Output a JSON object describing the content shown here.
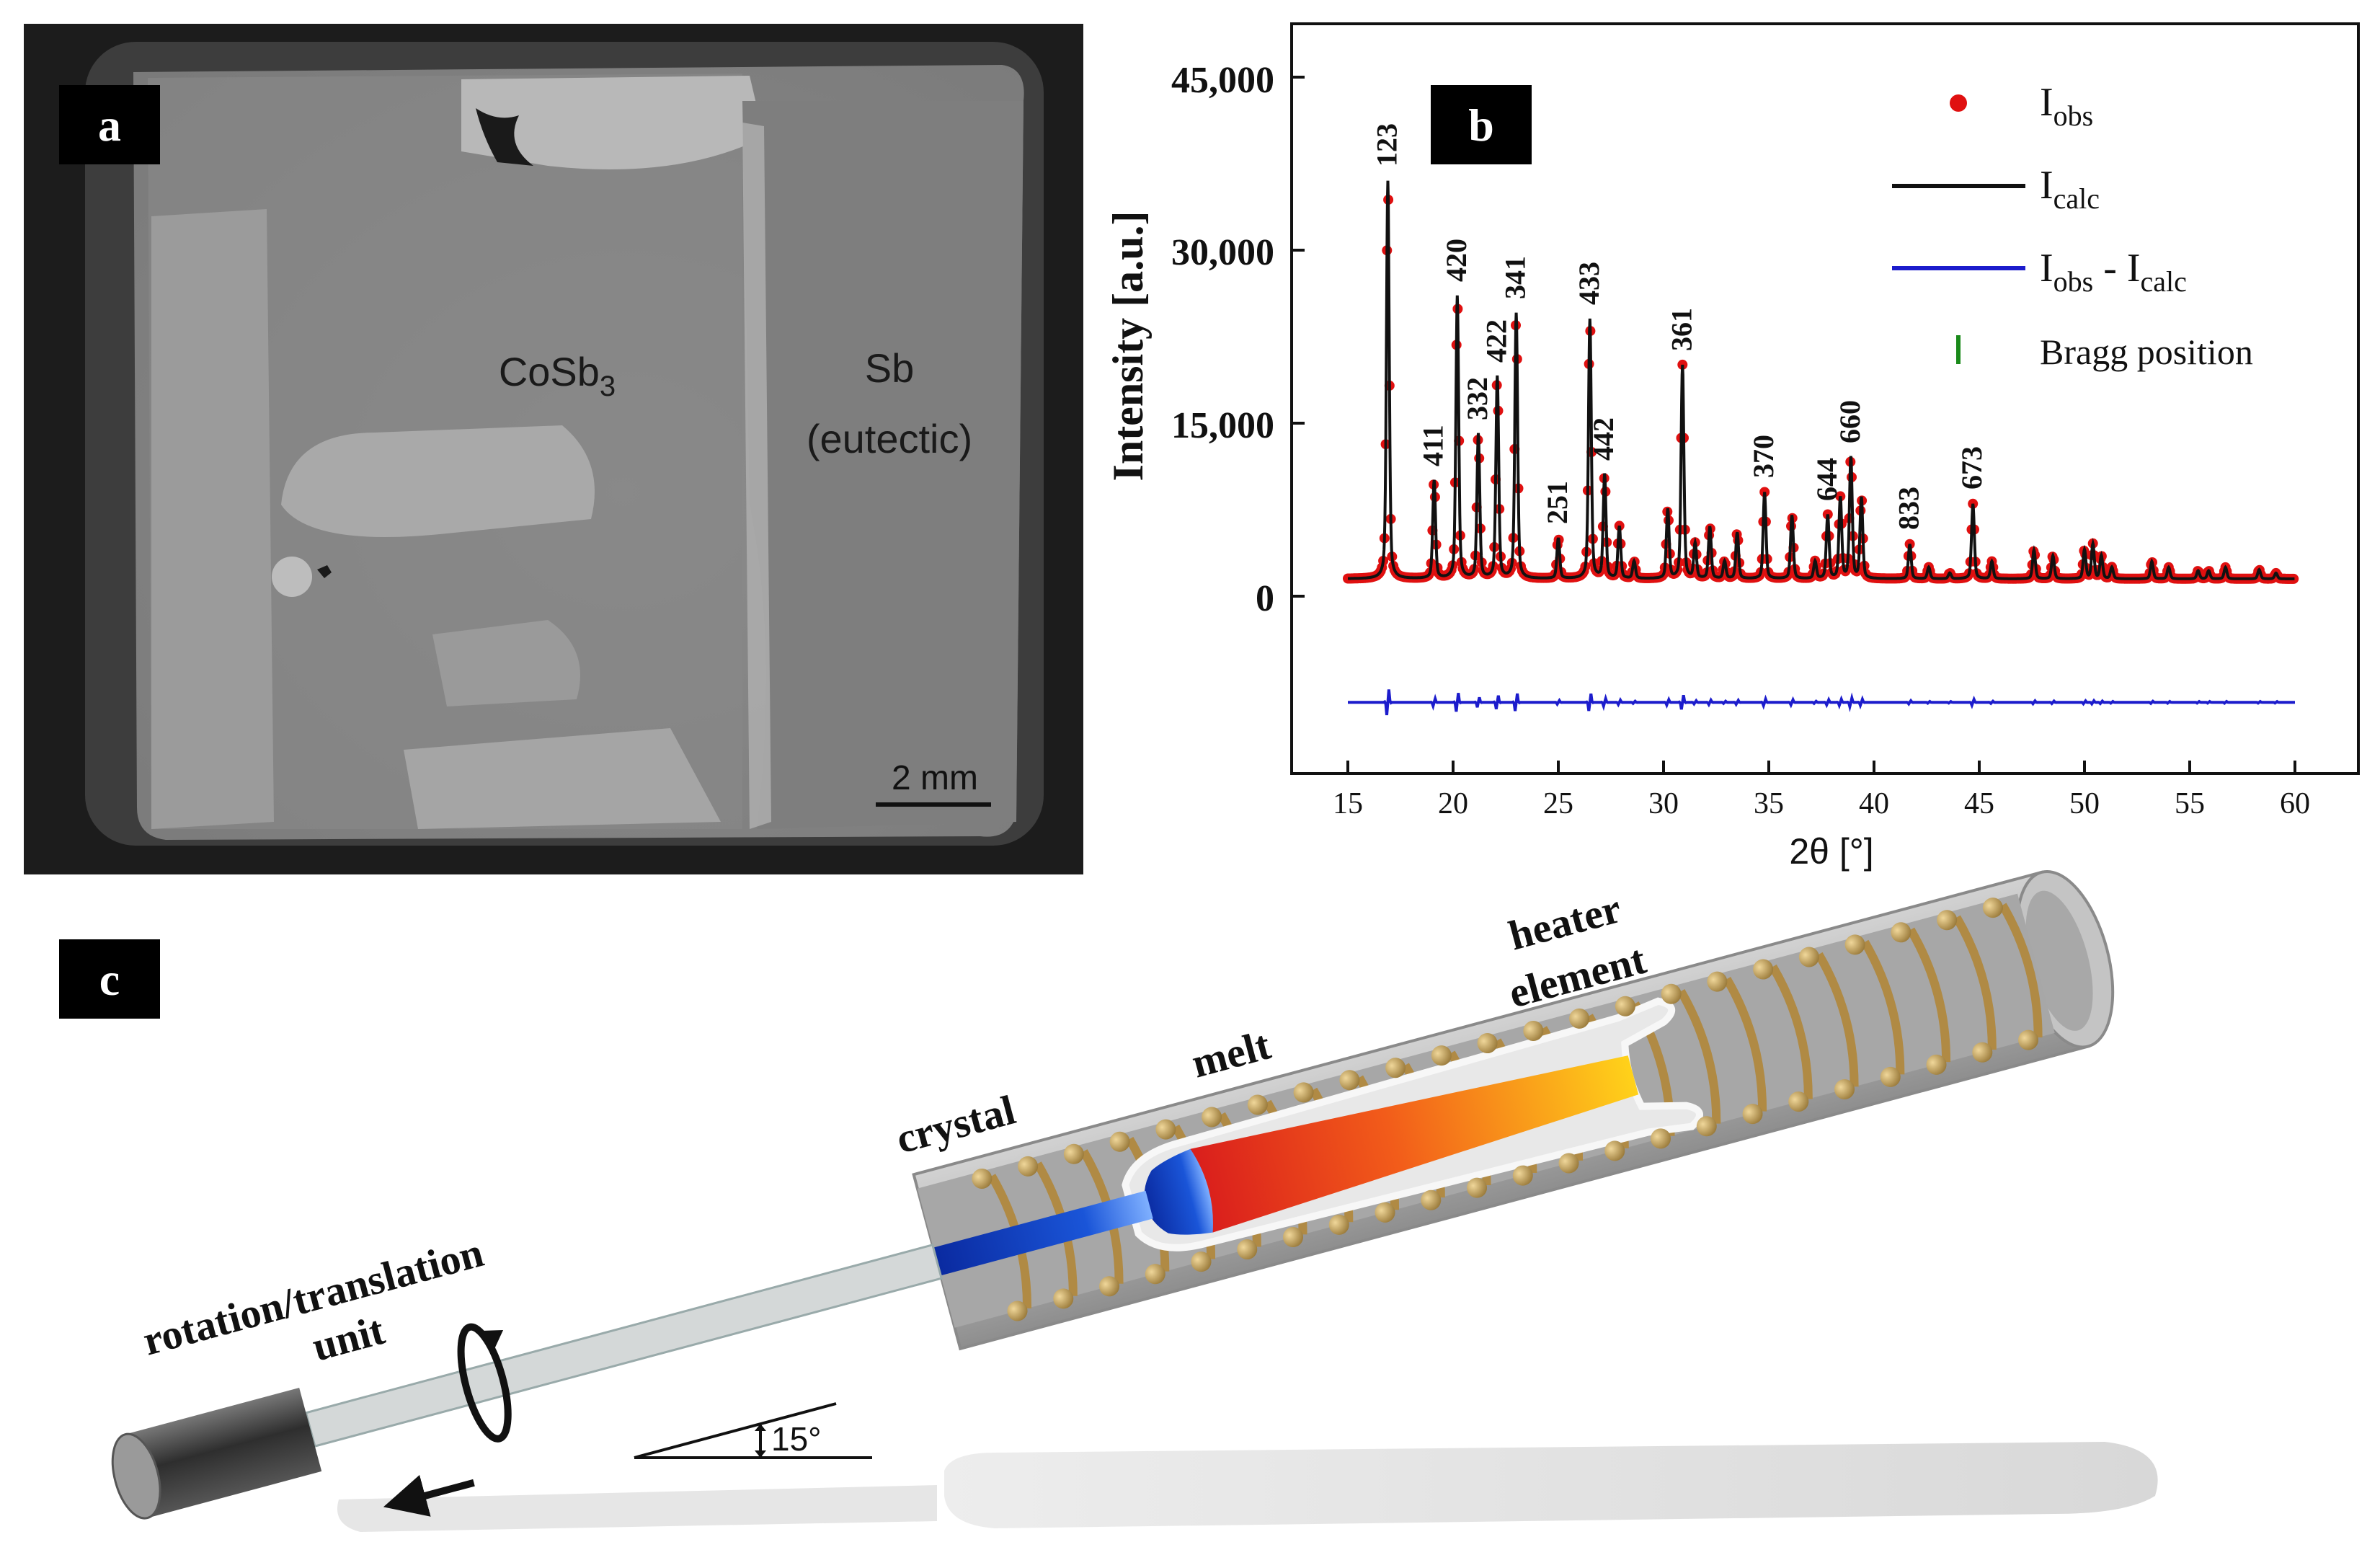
{
  "panel_a": {
    "label": "a",
    "phase_left": {
      "base": "CoSb",
      "sub": "3"
    },
    "phase_right_line1": "Sb",
    "phase_right_line2": "(eutectic)",
    "scale_bar": "2 mm"
  },
  "panel_b": {
    "label": "b",
    "y_axis_label": "Intensity [a.u.]",
    "x_axis_label": "2θ [°]",
    "y_ticks": [
      "45,000",
      "30,000",
      "15,000",
      "0"
    ],
    "x_ticks": [
      "15",
      "20",
      "25",
      "30",
      "35",
      "40",
      "45",
      "50",
      "55",
      "60"
    ],
    "legend": {
      "obs": {
        "base": "I",
        "sub": "obs"
      },
      "calc": {
        "base": "I",
        "sub": "calc"
      },
      "diff": {
        "base1": "I",
        "sub1": "obs",
        "mid": " - ",
        "base2": "I",
        "sub2": "calc"
      },
      "bragg": "Bragg position"
    }
  },
  "panel_c": {
    "label": "c",
    "heater_line1": "heater",
    "heater_line2": "element",
    "melt": "melt",
    "crystal": "crystal",
    "unit_line1": "rotation/translation",
    "unit_line2": "unit",
    "angle": "15°"
  },
  "chart_data": {
    "type": "line",
    "title": "",
    "xlabel": "2θ [°]",
    "ylabel": "Intensity [a.u.]",
    "xlim": [
      13.5,
      61.5
    ],
    "ylim": [
      -14000,
      50500
    ],
    "baseline": 1500,
    "diff_offset": -9200,
    "series": [
      {
        "name": "I_obs",
        "style": "red-dots"
      },
      {
        "name": "I_calc",
        "style": "black-line"
      },
      {
        "name": "I_obs - I_calc",
        "style": "blue-line"
      },
      {
        "name": "Bragg position",
        "style": "green-ticks"
      }
    ],
    "peaks": [
      {
        "x": 16.9,
        "y": 36000,
        "hkl": "123"
      },
      {
        "x": 19.1,
        "y": 10000,
        "hkl": "411"
      },
      {
        "x": 20.2,
        "y": 26000,
        "hkl": "420"
      },
      {
        "x": 21.2,
        "y": 14000,
        "hkl": "332"
      },
      {
        "x": 22.1,
        "y": 19000,
        "hkl": "422"
      },
      {
        "x": 23.0,
        "y": 24500,
        "hkl": "341"
      },
      {
        "x": 25.0,
        "y": 5000,
        "hkl": "251"
      },
      {
        "x": 26.5,
        "y": 24000,
        "hkl": "433"
      },
      {
        "x": 27.2,
        "y": 10500,
        "hkl": "442"
      },
      {
        "x": 27.9,
        "y": 6000,
        "hkl": ""
      },
      {
        "x": 28.6,
        "y": 3000,
        "hkl": ""
      },
      {
        "x": 30.2,
        "y": 7500,
        "hkl": ""
      },
      {
        "x": 30.9,
        "y": 20000,
        "hkl": "361"
      },
      {
        "x": 31.5,
        "y": 4500,
        "hkl": ""
      },
      {
        "x": 32.2,
        "y": 6000,
        "hkl": ""
      },
      {
        "x": 32.9,
        "y": 3000,
        "hkl": ""
      },
      {
        "x": 33.5,
        "y": 5500,
        "hkl": ""
      },
      {
        "x": 34.8,
        "y": 9000,
        "hkl": "370"
      },
      {
        "x": 36.1,
        "y": 7000,
        "hkl": ""
      },
      {
        "x": 37.2,
        "y": 3000,
        "hkl": ""
      },
      {
        "x": 37.8,
        "y": 7000,
        "hkl": "644"
      },
      {
        "x": 38.4,
        "y": 8500,
        "hkl": ""
      },
      {
        "x": 38.9,
        "y": 12000,
        "hkl": "660"
      },
      {
        "x": 39.4,
        "y": 8500,
        "hkl": ""
      },
      {
        "x": 41.7,
        "y": 4500,
        "hkl": "833"
      },
      {
        "x": 42.6,
        "y": 2500,
        "hkl": ""
      },
      {
        "x": 43.6,
        "y": 2000,
        "hkl": ""
      },
      {
        "x": 44.7,
        "y": 8000,
        "hkl": "673"
      },
      {
        "x": 45.6,
        "y": 3000,
        "hkl": ""
      },
      {
        "x": 47.6,
        "y": 4000,
        "hkl": ""
      },
      {
        "x": 48.5,
        "y": 3500,
        "hkl": ""
      },
      {
        "x": 50.0,
        "y": 4000,
        "hkl": ""
      },
      {
        "x": 50.4,
        "y": 4500,
        "hkl": ""
      },
      {
        "x": 50.8,
        "y": 3500,
        "hkl": ""
      },
      {
        "x": 51.3,
        "y": 2500,
        "hkl": ""
      },
      {
        "x": 53.2,
        "y": 3000,
        "hkl": ""
      },
      {
        "x": 54.0,
        "y": 2500,
        "hkl": ""
      },
      {
        "x": 55.4,
        "y": 2200,
        "hkl": ""
      },
      {
        "x": 55.9,
        "y": 2200,
        "hkl": ""
      },
      {
        "x": 56.7,
        "y": 2500,
        "hkl": ""
      },
      {
        "x": 58.3,
        "y": 2300,
        "hkl": ""
      },
      {
        "x": 59.1,
        "y": 2000,
        "hkl": ""
      }
    ]
  }
}
